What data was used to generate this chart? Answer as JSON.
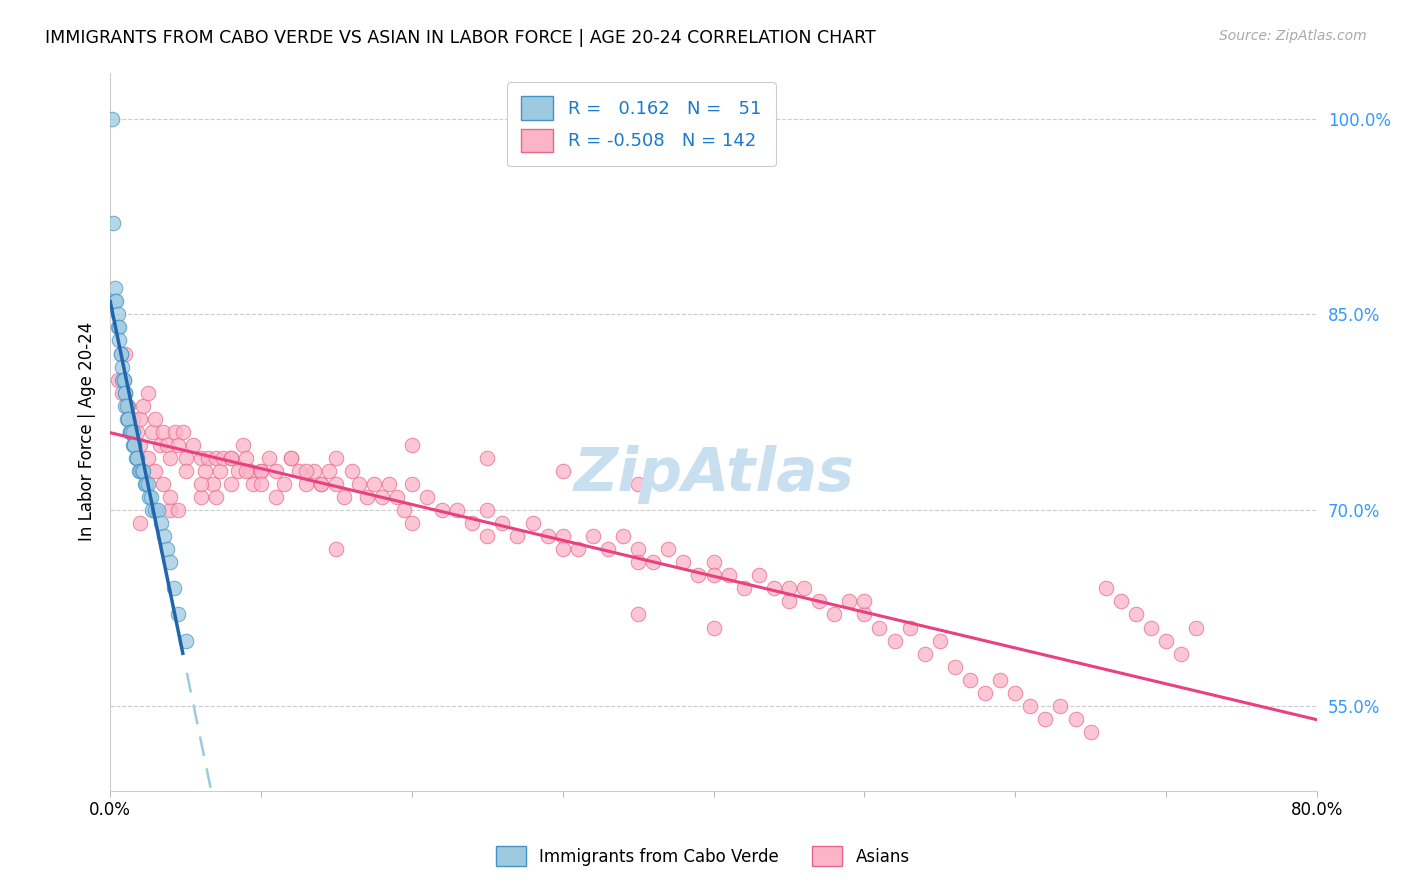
{
  "title": "IMMIGRANTS FROM CABO VERDE VS ASIAN IN LABOR FORCE | AGE 20-24 CORRELATION CHART",
  "source": "Source: ZipAtlas.com",
  "ylabel": "In Labor Force | Age 20-24",
  "x_min": 0.0,
  "x_max": 0.8,
  "y_min": 0.485,
  "y_max": 1.035,
  "y_ticks": [
    0.55,
    0.7,
    0.85,
    1.0
  ],
  "y_tick_labels": [
    "55.0%",
    "70.0%",
    "85.0%",
    "100.0%"
  ],
  "x_ticks": [
    0.0,
    0.1,
    0.2,
    0.3,
    0.4,
    0.5,
    0.6,
    0.7,
    0.8
  ],
  "x_tick_labels": [
    "0.0%",
    "",
    "",
    "",
    "",
    "",
    "",
    "",
    "80.0%"
  ],
  "legend_label_blue": "Immigrants from Cabo Verde",
  "legend_label_pink": "Asians",
  "R_blue": "0.162",
  "N_blue": "51",
  "R_pink": "-0.508",
  "N_pink": "142",
  "blue_color": "#9ecae1",
  "blue_edge_color": "#4292c6",
  "pink_color": "#fbb4c8",
  "pink_edge_color": "#e8668a",
  "blue_line_color": "#2166ac",
  "pink_line_color": "#e84080",
  "dashed_line_color": "#9ecae1",
  "text_value_color": "#1a7acc",
  "watermark_color": "#c8dff0",
  "cabo_verde_x": [
    0.001,
    0.002,
    0.003,
    0.003,
    0.004,
    0.005,
    0.005,
    0.006,
    0.006,
    0.007,
    0.007,
    0.008,
    0.008,
    0.009,
    0.009,
    0.01,
    0.01,
    0.01,
    0.011,
    0.011,
    0.012,
    0.012,
    0.013,
    0.013,
    0.014,
    0.015,
    0.015,
    0.016,
    0.016,
    0.017,
    0.018,
    0.018,
    0.019,
    0.02,
    0.021,
    0.022,
    0.023,
    0.024,
    0.025,
    0.026,
    0.027,
    0.028,
    0.03,
    0.032,
    0.034,
    0.036,
    0.038,
    0.04,
    0.042,
    0.045,
    0.05
  ],
  "cabo_verde_y": [
    1.0,
    0.92,
    0.87,
    0.86,
    0.86,
    0.85,
    0.84,
    0.84,
    0.83,
    0.82,
    0.82,
    0.81,
    0.8,
    0.8,
    0.8,
    0.79,
    0.79,
    0.78,
    0.78,
    0.77,
    0.77,
    0.77,
    0.76,
    0.76,
    0.76,
    0.76,
    0.75,
    0.75,
    0.75,
    0.74,
    0.74,
    0.74,
    0.73,
    0.73,
    0.73,
    0.73,
    0.72,
    0.72,
    0.72,
    0.71,
    0.71,
    0.7,
    0.7,
    0.7,
    0.69,
    0.68,
    0.67,
    0.66,
    0.64,
    0.62,
    0.6
  ],
  "asian_x": [
    0.005,
    0.008,
    0.01,
    0.012,
    0.015,
    0.018,
    0.02,
    0.022,
    0.025,
    0.028,
    0.03,
    0.033,
    0.035,
    0.038,
    0.04,
    0.043,
    0.045,
    0.048,
    0.05,
    0.055,
    0.06,
    0.063,
    0.065,
    0.068,
    0.07,
    0.073,
    0.075,
    0.08,
    0.085,
    0.088,
    0.09,
    0.093,
    0.095,
    0.1,
    0.105,
    0.11,
    0.115,
    0.12,
    0.125,
    0.13,
    0.135,
    0.14,
    0.145,
    0.15,
    0.155,
    0.16,
    0.165,
    0.17,
    0.175,
    0.18,
    0.185,
    0.19,
    0.195,
    0.2,
    0.21,
    0.22,
    0.23,
    0.24,
    0.25,
    0.26,
    0.27,
    0.28,
    0.29,
    0.3,
    0.31,
    0.32,
    0.33,
    0.34,
    0.35,
    0.36,
    0.37,
    0.38,
    0.39,
    0.4,
    0.41,
    0.42,
    0.43,
    0.44,
    0.45,
    0.46,
    0.47,
    0.48,
    0.49,
    0.5,
    0.51,
    0.52,
    0.53,
    0.54,
    0.55,
    0.56,
    0.57,
    0.58,
    0.59,
    0.6,
    0.61,
    0.62,
    0.63,
    0.64,
    0.65,
    0.66,
    0.67,
    0.68,
    0.69,
    0.7,
    0.71,
    0.72,
    0.15,
    0.2,
    0.25,
    0.3,
    0.35,
    0.4,
    0.45,
    0.5,
    0.35,
    0.4,
    0.25,
    0.3,
    0.35,
    0.2,
    0.15,
    0.1,
    0.08,
    0.06,
    0.04,
    0.02,
    0.02,
    0.025,
    0.03,
    0.035,
    0.04,
    0.045,
    0.05,
    0.06,
    0.07,
    0.08,
    0.09,
    0.1,
    0.11,
    0.12,
    0.13,
    0.14
  ],
  "asian_y": [
    0.8,
    0.79,
    0.82,
    0.78,
    0.77,
    0.76,
    0.77,
    0.78,
    0.79,
    0.76,
    0.77,
    0.75,
    0.76,
    0.75,
    0.74,
    0.76,
    0.75,
    0.76,
    0.74,
    0.75,
    0.74,
    0.73,
    0.74,
    0.72,
    0.74,
    0.73,
    0.74,
    0.74,
    0.73,
    0.75,
    0.74,
    0.73,
    0.72,
    0.73,
    0.74,
    0.73,
    0.72,
    0.74,
    0.73,
    0.72,
    0.73,
    0.72,
    0.73,
    0.72,
    0.71,
    0.73,
    0.72,
    0.71,
    0.72,
    0.71,
    0.72,
    0.71,
    0.7,
    0.72,
    0.71,
    0.7,
    0.7,
    0.69,
    0.7,
    0.69,
    0.68,
    0.69,
    0.68,
    0.68,
    0.67,
    0.68,
    0.67,
    0.68,
    0.67,
    0.66,
    0.67,
    0.66,
    0.65,
    0.66,
    0.65,
    0.64,
    0.65,
    0.64,
    0.63,
    0.64,
    0.63,
    0.62,
    0.63,
    0.62,
    0.61,
    0.6,
    0.61,
    0.59,
    0.6,
    0.58,
    0.57,
    0.56,
    0.57,
    0.56,
    0.55,
    0.54,
    0.55,
    0.54,
    0.53,
    0.64,
    0.63,
    0.62,
    0.61,
    0.6,
    0.59,
    0.61,
    0.67,
    0.69,
    0.68,
    0.67,
    0.66,
    0.65,
    0.64,
    0.63,
    0.62,
    0.61,
    0.74,
    0.73,
    0.72,
    0.75,
    0.74,
    0.73,
    0.72,
    0.71,
    0.7,
    0.69,
    0.75,
    0.74,
    0.73,
    0.72,
    0.71,
    0.7,
    0.73,
    0.72,
    0.71,
    0.74,
    0.73,
    0.72,
    0.71,
    0.74,
    0.73,
    0.72
  ]
}
